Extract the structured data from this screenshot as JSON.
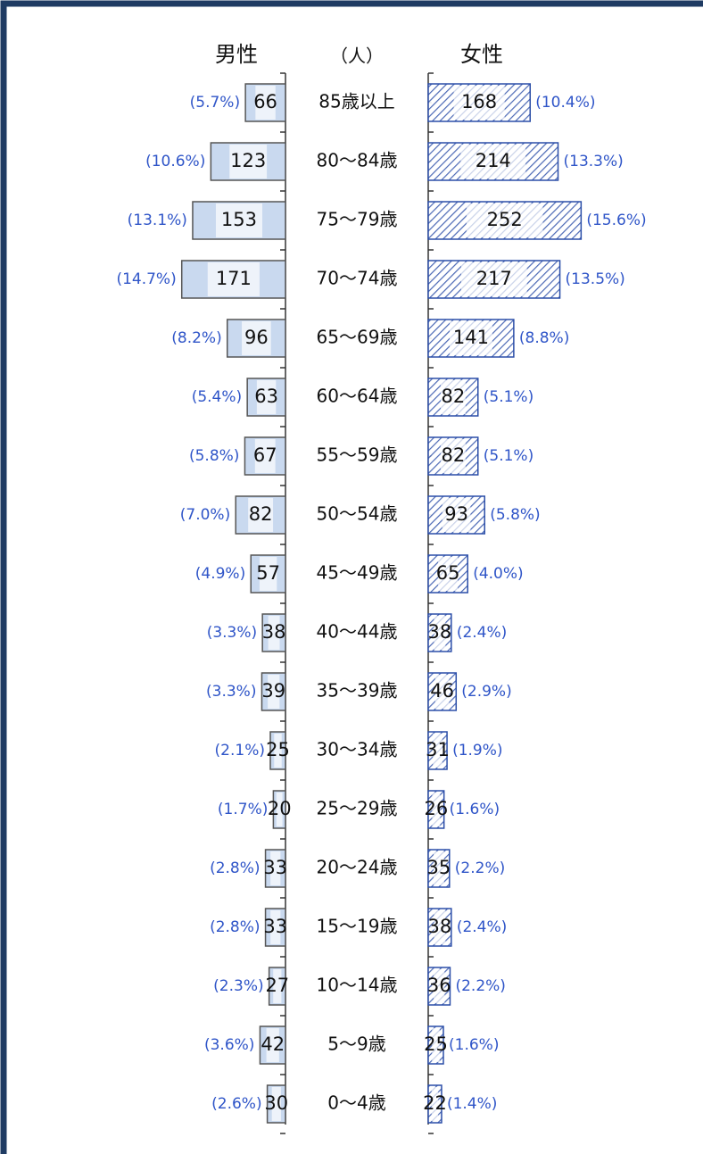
{
  "chart_data": {
    "type": "pyramid",
    "unit_label": "（人）",
    "categories": [
      "85歳以上",
      "80〜84歳",
      "75〜79歳",
      "70〜74歳",
      "65〜69歳",
      "60〜64歳",
      "55〜59歳",
      "50〜54歳",
      "45〜49歳",
      "40〜44歳",
      "35〜39歳",
      "30〜34歳",
      "25〜29歳",
      "20〜24歳",
      "15〜19歳",
      "10〜14歳",
      "5〜9歳",
      "0〜4歳"
    ],
    "series": [
      {
        "name": "男性",
        "color": "#c9d9ef",
        "values": [
          66,
          123,
          153,
          171,
          96,
          63,
          67,
          82,
          57,
          38,
          39,
          25,
          20,
          33,
          33,
          27,
          42,
          30
        ],
        "percent_labels": [
          "(5.7%)",
          "(10.6%)",
          "(13.1%)",
          "(14.7%)",
          "(8.2%)",
          "(5.4%)",
          "(5.8%)",
          "(7.0%)",
          "(4.9%)",
          "(3.3%)",
          "(3.3%)",
          "(2.1%)",
          "(1.7%)",
          "(2.8%)",
          "(2.8%)",
          "(2.3%)",
          "(3.6%)",
          "(2.6%)"
        ]
      },
      {
        "name": "女性",
        "color": "#2b4ea8",
        "values": [
          168,
          214,
          252,
          217,
          141,
          82,
          82,
          93,
          65,
          38,
          46,
          31,
          26,
          35,
          38,
          36,
          25,
          22
        ],
        "percent_labels": [
          "(10.4%)",
          "(13.3%)",
          "(15.6%)",
          "(13.5%)",
          "(8.8%)",
          "(5.1%)",
          "(5.1%)",
          "(5.8%)",
          "(4.0%)",
          "(2.4%)",
          "(2.9%)",
          "(1.9%)",
          "(1.6%)",
          "(2.2%)",
          "(2.4%)",
          "(2.2%)",
          "(1.6%)",
          "(1.4%)"
        ]
      }
    ]
  }
}
